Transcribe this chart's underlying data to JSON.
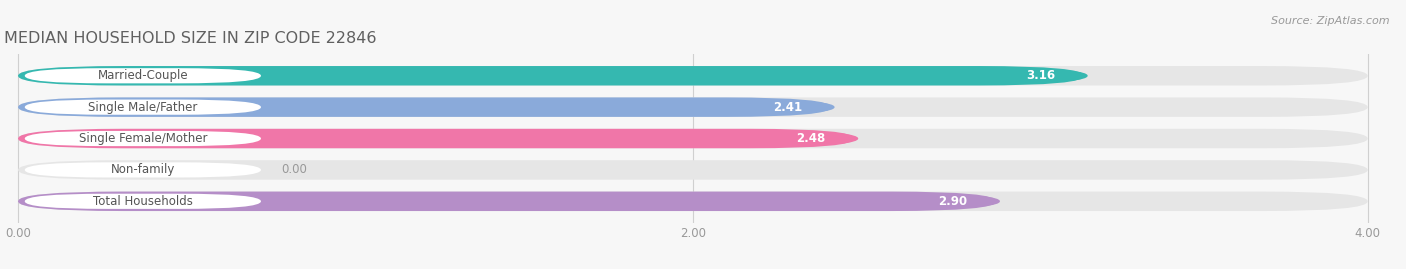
{
  "title": "MEDIAN HOUSEHOLD SIZE IN ZIP CODE 22846",
  "source": "Source: ZipAtlas.com",
  "categories": [
    "Married-Couple",
    "Single Male/Father",
    "Single Female/Mother",
    "Non-family",
    "Total Households"
  ],
  "values": [
    3.16,
    2.41,
    2.48,
    0.0,
    2.9
  ],
  "bar_colors": [
    "#35b8b0",
    "#8aaada",
    "#f076a8",
    "#f5c99a",
    "#b58ec8"
  ],
  "track_color": "#e6e6e6",
  "label_bg_color": "#ffffff",
  "xlim_min": 0.0,
  "xlim_max": 4.0,
  "xticks": [
    0.0,
    2.0,
    4.0
  ],
  "xtick_labels": [
    "0.00",
    "2.00",
    "4.00"
  ],
  "value_label_color": "#ffffff",
  "title_color": "#606060",
  "title_fontsize": 11.5,
  "bar_height": 0.62,
  "label_fontsize": 8.5,
  "value_fontsize": 8.5,
  "source_fontsize": 8.0,
  "tick_fontsize": 8.5,
  "background_color": "#f7f7f7",
  "grid_color": "#d0d0d0"
}
